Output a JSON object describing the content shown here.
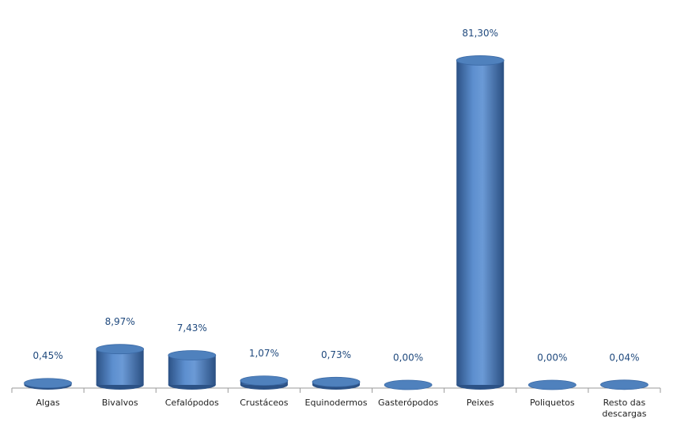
{
  "chart_data": {
    "type": "bar",
    "style": "cylinder",
    "categories": [
      "Algas",
      "Bivalvos",
      "Cefalópodos",
      "Crustáceos",
      "Equinodermos",
      "Gasterópodos",
      "Peixes",
      "Poliquetos",
      "Resto das descargas"
    ],
    "values": [
      0.45,
      8.97,
      7.43,
      1.07,
      0.73,
      0.0,
      81.3,
      0.0,
      0.04
    ],
    "value_labels": [
      "0,45%",
      "8,97%",
      "7,43%",
      "1,07%",
      "0,73%",
      "0,00%",
      "81,30%",
      "0,00%",
      "0,04%"
    ],
    "color": "#4f81bd"
  }
}
